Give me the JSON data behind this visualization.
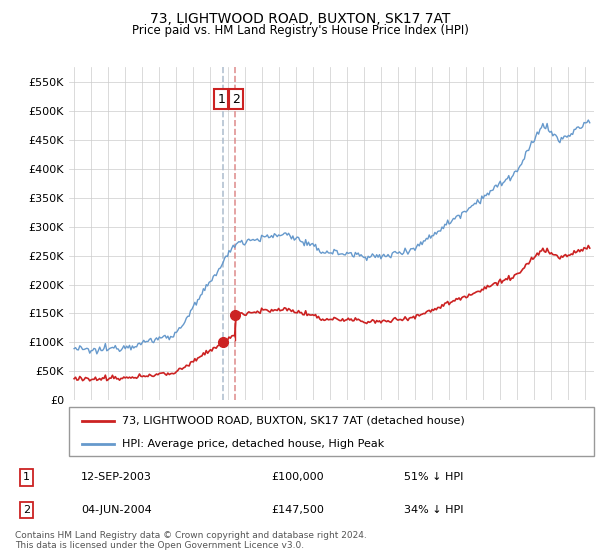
{
  "title": "73, LIGHTWOOD ROAD, BUXTON, SK17 7AT",
  "subtitle": "Price paid vs. HM Land Registry's House Price Index (HPI)",
  "ylim": [
    0,
    575000
  ],
  "yticks": [
    0,
    50000,
    100000,
    150000,
    200000,
    250000,
    300000,
    350000,
    400000,
    450000,
    500000,
    550000
  ],
  "hpi_color": "#6699cc",
  "price_color": "#cc2222",
  "vline1_color": "#aabbcc",
  "vline2_color": "#dd8888",
  "legend_label_price": "73, LIGHTWOOD ROAD, BUXTON, SK17 7AT (detached house)",
  "legend_label_hpi": "HPI: Average price, detached house, High Peak",
  "sale1_date_label": "12-SEP-2003",
  "sale1_price": 100000,
  "sale1_label": "£100,000",
  "sale1_pct": "51% ↓ HPI",
  "sale2_date_label": "04-JUN-2004",
  "sale2_price": 147500,
  "sale2_label": "£147,500",
  "sale2_pct": "34% ↓ HPI",
  "footer": "Contains HM Land Registry data © Crown copyright and database right 2024.\nThis data is licensed under the Open Government Licence v3.0.",
  "sale1_x": 2003.71,
  "sale2_x": 2004.42,
  "bg_color": "#f0f0f0"
}
